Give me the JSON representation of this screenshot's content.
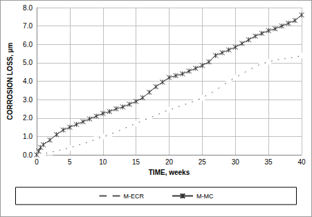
{
  "chart_data": {
    "type": "line",
    "x_label": "TIME, weeks",
    "y_label": "CORROSION LOSS, µm",
    "x": [
      0,
      0.3,
      0.6,
      1,
      2,
      3,
      4,
      5,
      6,
      7,
      8,
      9,
      10,
      11,
      12,
      13,
      14,
      15,
      16,
      17,
      18,
      19,
      20,
      21,
      22,
      23,
      24,
      25,
      26,
      27,
      28,
      29,
      30,
      31,
      32,
      33,
      34,
      35,
      36,
      37,
      38,
      39,
      40
    ],
    "series": [
      {
        "name": "M-ECR",
        "color": "#4d4d4d",
        "marker": "square",
        "values": [
          0,
          0.02,
          0.04,
          0.06,
          0.13,
          0.2,
          0.3,
          0.38,
          0.5,
          0.6,
          0.72,
          0.85,
          1.0,
          1.1,
          1.25,
          1.4,
          1.55,
          1.7,
          1.85,
          2.0,
          2.15,
          2.3,
          2.45,
          2.55,
          2.7,
          2.8,
          2.95,
          3.1,
          3.3,
          3.5,
          3.75,
          4.0,
          4.2,
          4.4,
          4.6,
          4.8,
          4.95,
          5.05,
          5.15,
          5.2,
          5.25,
          5.3,
          5.4
        ]
      },
      {
        "name": "M-MC",
        "color": "#333333",
        "marker": "x",
        "values": [
          0,
          0.2,
          0.4,
          0.55,
          0.8,
          1.1,
          1.35,
          1.5,
          1.65,
          1.8,
          1.95,
          2.1,
          2.25,
          2.35,
          2.5,
          2.6,
          2.75,
          2.9,
          3.1,
          3.4,
          3.7,
          3.95,
          4.2,
          4.3,
          4.4,
          4.55,
          4.7,
          4.85,
          5.05,
          5.4,
          5.55,
          5.7,
          5.85,
          6.05,
          6.25,
          6.45,
          6.6,
          6.75,
          6.85,
          7.0,
          7.15,
          7.3,
          7.6
        ]
      }
    ],
    "xlim": [
      0,
      40
    ],
    "xticks": [
      0,
      5,
      10,
      15,
      20,
      25,
      30,
      35,
      40
    ],
    "ylim": [
      0,
      8
    ],
    "yticks": [
      {
        "value": 0,
        "label": "0.0"
      },
      {
        "value": 1,
        "label": "1.0"
      },
      {
        "value": 2,
        "label": "2.0"
      },
      {
        "value": 3,
        "label": "3.0"
      },
      {
        "value": 4,
        "label": "4.0"
      },
      {
        "value": 5,
        "label": "5.0"
      },
      {
        "value": 6,
        "label": "6.0"
      },
      {
        "value": 7,
        "label": "7.0"
      },
      {
        "value": 8,
        "label": "8.0"
      }
    ],
    "grid": true,
    "legend": "bottom"
  }
}
